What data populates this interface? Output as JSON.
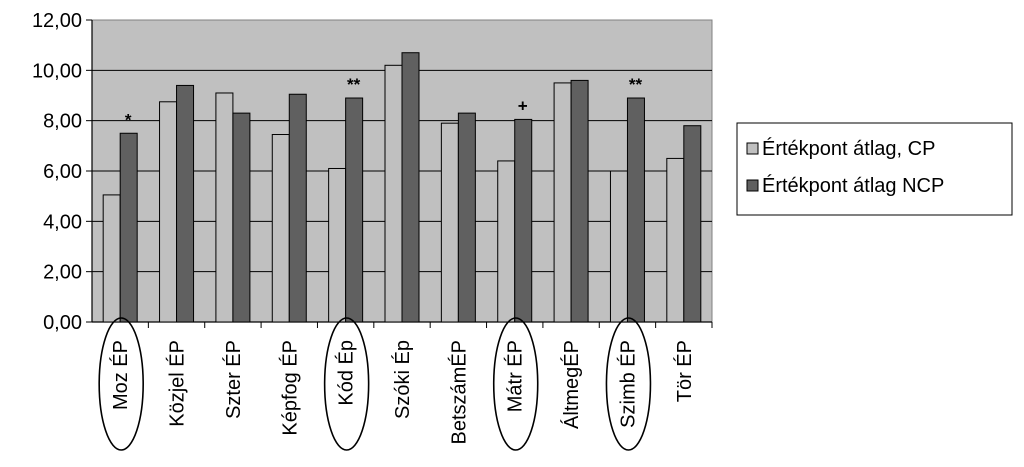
{
  "chart_data": {
    "type": "bar",
    "categories": [
      "Moz ÉP",
      "Közjel ÉP",
      "Szter ÉP",
      "Képfog ÉP",
      "Kód Ép",
      "Szóki Ép",
      "BetszámÉP",
      "Mátr ÉP",
      "ÁltmegÉP",
      "Szimb ÉP",
      "Tör ÉP"
    ],
    "series": [
      {
        "name": "Értékpont átlag, CP",
        "values": [
          5.05,
          8.75,
          9.1,
          7.45,
          6.1,
          10.2,
          7.9,
          6.4,
          9.5,
          6.0,
          6.5
        ],
        "color": "#c0c0c0"
      },
      {
        "name": "Értékpont átlag NCP",
        "values": [
          7.5,
          9.4,
          8.3,
          9.05,
          8.9,
          10.7,
          8.3,
          8.05,
          9.6,
          8.9,
          7.8
        ],
        "color": "#606060"
      }
    ],
    "significance": [
      "*",
      "",
      "",
      "",
      "**",
      "",
      "",
      "+",
      "",
      "**",
      ""
    ],
    "circled_categories": [
      "Moz ÉP",
      "Kód Ép",
      "Mátr ÉP",
      "Szimb ÉP"
    ],
    "ylim": [
      0,
      12
    ],
    "yticks": [
      "0,00",
      "2,00",
      "4,00",
      "6,00",
      "8,00",
      "10,00",
      "12,00"
    ],
    "title": "",
    "xlabel": "",
    "ylabel": "",
    "plot_background": "#c0c0c0",
    "grid": true,
    "legend_position": "right"
  }
}
